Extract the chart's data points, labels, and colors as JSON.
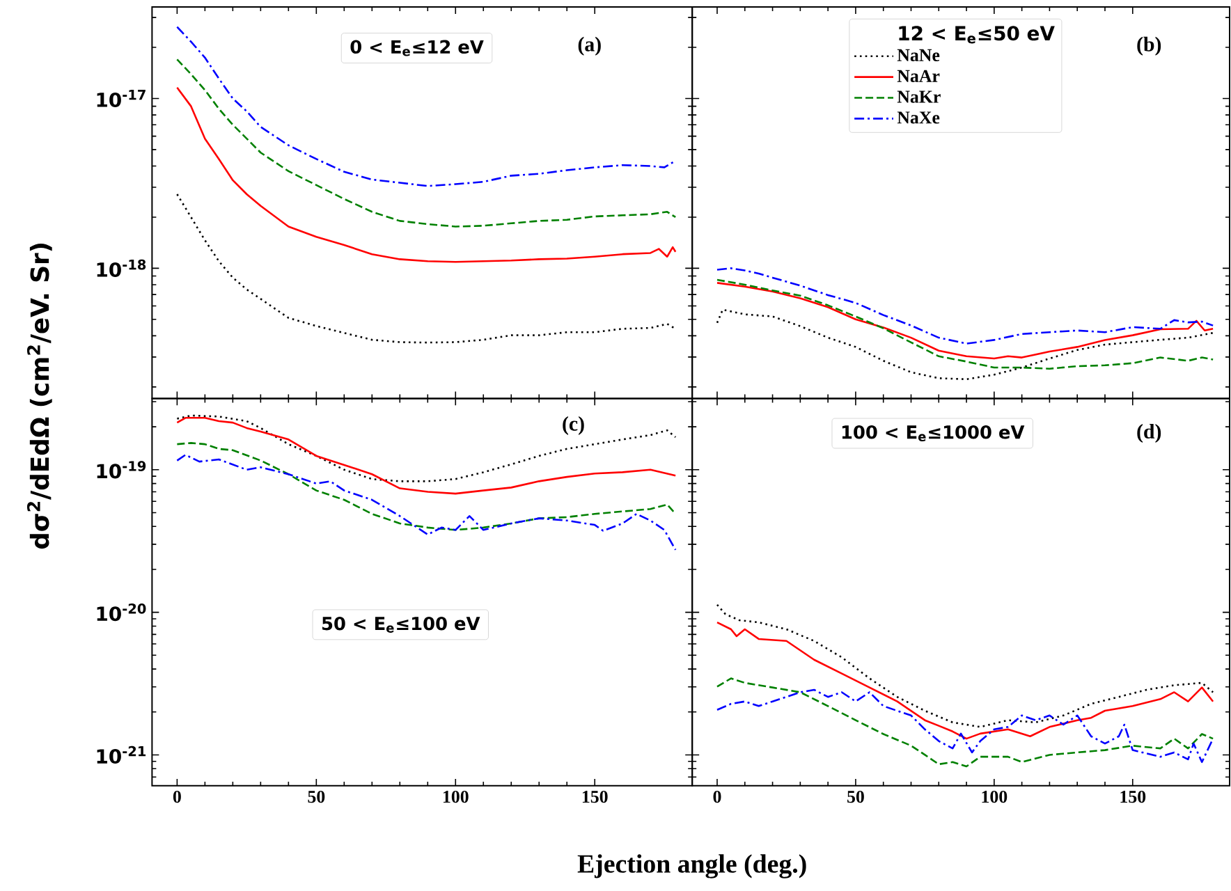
{
  "chart_data": [
    {
      "type": "line",
      "ylabel": "dσ$^{2}$/dEdΩ (cm$^{2}$/eV. Sr)",
      "log": "y",
      "xlim": [
        -9,
        185
      ],
      "xticks": [
        0,
        50,
        100,
        150
      ],
      "ylim": [
        1.71e-19,
        3.46e-17
      ],
      "yticks": [
        {
          "value": 1e-17,
          "label": "10$^{-17}$"
        },
        {
          "value": 1e-18,
          "label": "10$^{-18}$"
        }
      ],
      "tick_labels": "y",
      "legend": false,
      "annotations": [
        "0 < E$_{e}$≤12 eV",
        "(a)"
      ],
      "series": [
        {
          "color": "#000000",
          "line_style": "dotted",
          "x": [
            0,
            5,
            10,
            15,
            20,
            25,
            30,
            40,
            50,
            60,
            70,
            80,
            90,
            100,
            110,
            120,
            130,
            140,
            150,
            160,
            170,
            176,
            179
          ],
          "values": [
            2.73e-18,
            2e-18,
            1.46e-18,
            1.1e-18,
            8.8e-19,
            7.5e-19,
            6.6e-19,
            5.1e-19,
            4.57e-19,
            4.16e-19,
            3.79e-19,
            3.67e-19,
            3.65e-19,
            3.67e-19,
            3.79e-19,
            4.03e-19,
            4.03e-19,
            4.2e-19,
            4.2e-19,
            4.4e-19,
            4.45e-19,
            4.7e-19,
            4.4e-19
          ]
        },
        {
          "color": "#ff0000",
          "line_style": "solid",
          "x": [
            0,
            5,
            10,
            15,
            20,
            25,
            30,
            40,
            50,
            60,
            70,
            80,
            90,
            100,
            110,
            120,
            130,
            140,
            150,
            160,
            170,
            173,
            176,
            178,
            179
          ],
          "values": [
            1.16e-17,
            9e-18,
            5.8e-18,
            4.4e-18,
            3.3e-18,
            2.73e-18,
            2.33e-18,
            1.76e-18,
            1.53e-18,
            1.37e-18,
            1.21e-18,
            1.13e-18,
            1.1e-18,
            1.09e-18,
            1.1e-18,
            1.11e-18,
            1.13e-18,
            1.14e-18,
            1.17e-18,
            1.21e-18,
            1.23e-18,
            1.3e-18,
            1.17e-18,
            1.33e-18,
            1.25e-18
          ]
        },
        {
          "color": "#008000",
          "line_style": "dashed",
          "x": [
            0,
            5,
            10,
            15,
            20,
            25,
            30,
            40,
            50,
            60,
            70,
            80,
            90,
            100,
            110,
            120,
            130,
            140,
            150,
            160,
            170,
            176,
            179
          ],
          "values": [
            1.7e-17,
            1.39e-17,
            1.12e-17,
            8.7e-18,
            7e-18,
            5.8e-18,
            4.8e-18,
            3.73e-18,
            3.09e-18,
            2.56e-18,
            2.15e-18,
            1.9e-18,
            1.82e-18,
            1.76e-18,
            1.78e-18,
            1.84e-18,
            1.9e-18,
            1.93e-18,
            2.02e-18,
            2.05e-18,
            2.08e-18,
            2.15e-18,
            2e-18
          ]
        },
        {
          "color": "#0000ff",
          "line_style": "dashdot",
          "x": [
            0,
            5,
            10,
            15,
            20,
            25,
            30,
            40,
            50,
            60,
            70,
            80,
            90,
            100,
            110,
            120,
            130,
            140,
            150,
            160,
            170,
            175,
            179
          ],
          "values": [
            2.64e-17,
            2.16e-17,
            1.74e-17,
            1.31e-17,
            1e-17,
            8.4e-18,
            6.8e-18,
            5.3e-18,
            4.4e-18,
            3.7e-18,
            3.33e-18,
            3.19e-18,
            3.05e-18,
            3.13e-18,
            3.23e-18,
            3.51e-18,
            3.6e-18,
            3.78e-18,
            3.93e-18,
            4.05e-18,
            4e-18,
            3.93e-18,
            4.3e-18
          ]
        }
      ]
    },
    {
      "type": "line",
      "log": "y",
      "xlim": [
        -9,
        185
      ],
      "xticks": [
        0,
        50,
        100,
        150
      ],
      "ylim": [
        1.71e-19,
        3.46e-17
      ],
      "yticks": [
        {
          "value": 1e-17,
          "label": null
        },
        {
          "value": 1e-18,
          "label": null
        }
      ],
      "tick_labels": false,
      "legend": "top",
      "legend_title": "12 < E$_{e}$≤50 eV",
      "annotations": [
        "(b)"
      ],
      "series": [
        {
          "name": "NaNe",
          "color": "#000000",
          "line_style": "dotted",
          "x": [
            0,
            2,
            10,
            20,
            30,
            40,
            50,
            60,
            70,
            80,
            90,
            100,
            110,
            120,
            130,
            140,
            150,
            160,
            170,
            179
          ],
          "values": [
            4.77e-19,
            5.7e-19,
            5.35e-19,
            5.2e-19,
            4.56e-19,
            3.9e-19,
            3.44e-19,
            2.85e-19,
            2.44e-19,
            2.25e-19,
            2.22e-19,
            2.36e-19,
            2.6e-19,
            2.94e-19,
            3.3e-19,
            3.55e-19,
            3.67e-19,
            3.79e-19,
            3.9e-19,
            4.16e-19
          ]
        },
        {
          "name": "NaAr",
          "color": "#ff0000",
          "line_style": "solid",
          "x": [
            0,
            10,
            20,
            30,
            40,
            50,
            60,
            70,
            80,
            90,
            100,
            105,
            110,
            120,
            130,
            140,
            150,
            160,
            170,
            173,
            176,
            179
          ],
          "values": [
            8.2e-19,
            7.8e-19,
            7.3e-19,
            6.65e-19,
            5.9e-19,
            5e-19,
            4.48e-19,
            3.9e-19,
            3.27e-19,
            3.03e-19,
            2.94e-19,
            3.03e-19,
            2.98e-19,
            3.23e-19,
            3.44e-19,
            3.78e-19,
            4.03e-19,
            4.37e-19,
            4.4e-19,
            4.9e-19,
            4.3e-19,
            4.4e-19
          ]
        },
        {
          "name": "NaKr",
          "color": "#008000",
          "line_style": "dashed",
          "x": [
            0,
            10,
            20,
            30,
            40,
            50,
            60,
            70,
            80,
            90,
            100,
            110,
            120,
            130,
            140,
            150,
            160,
            170,
            175,
            179
          ],
          "values": [
            8.55e-19,
            8e-19,
            7.4e-19,
            6.9e-19,
            6.05e-19,
            5.2e-19,
            4.43e-19,
            3.66e-19,
            3.03e-19,
            2.82e-19,
            2.6e-19,
            2.6e-19,
            2.56e-19,
            2.65e-19,
            2.68e-19,
            2.76e-19,
            2.98e-19,
            2.85e-19,
            2.98e-19,
            2.9e-19
          ]
        },
        {
          "name": "NaXe",
          "color": "#0000ff",
          "line_style": "dashdot",
          "x": [
            0,
            5,
            10,
            15,
            20,
            30,
            40,
            50,
            60,
            70,
            80,
            90,
            100,
            110,
            120,
            130,
            140,
            150,
            160,
            165,
            170,
            175,
            179
          ],
          "values": [
            9.8e-19,
            1e-18,
            9.7e-19,
            9.3e-19,
            8.8e-19,
            7.9e-19,
            6.95e-19,
            6.25e-19,
            5.3e-19,
            4.6e-19,
            3.9e-19,
            3.6e-19,
            3.78e-19,
            4.1e-19,
            4.2e-19,
            4.3e-19,
            4.2e-19,
            4.5e-19,
            4.4e-19,
            4.95e-19,
            4.8e-19,
            4.85e-19,
            4.6e-19
          ]
        }
      ]
    },
    {
      "type": "line",
      "xlabel": "Ejection angle (deg.)",
      "log": "y",
      "xlim": [
        -9,
        185
      ],
      "xticks": [
        0,
        50,
        100,
        150
      ],
      "ylim": [
        6.07e-22,
        3.16e-19
      ],
      "yticks": [
        {
          "value": 1e-19,
          "label": "10$^{-19}$"
        },
        {
          "value": 1e-20,
          "label": "10$^{-20}$"
        },
        {
          "value": 1e-21,
          "label": "10$^{-21}$"
        }
      ],
      "legend": false,
      "annotations": [
        "50 < E$_{e}$≤100 eV",
        "(c)"
      ],
      "series": [
        {
          "color": "#000000",
          "line_style": "dotted",
          "x": [
            0,
            5,
            15,
            25,
            30,
            40,
            50,
            60,
            70,
            80,
            90,
            100,
            110,
            120,
            130,
            140,
            150,
            160,
            170,
            176,
            179
          ],
          "values": [
            2.28e-19,
            2.4e-19,
            2.36e-19,
            2.19e-19,
            1.96e-19,
            1.51e-19,
            1.25e-19,
            1e-19,
            8.6e-20,
            8.3e-20,
            8.3e-20,
            8.6e-20,
            9.6e-20,
            1.09e-19,
            1.25e-19,
            1.4e-19,
            1.51e-19,
            1.63e-19,
            1.75e-19,
            1.89e-19,
            1.69e-19
          ]
        },
        {
          "color": "#ff0000",
          "line_style": "solid",
          "x": [
            0,
            3,
            10,
            15,
            20,
            25,
            30,
            40,
            50,
            60,
            70,
            80,
            90,
            100,
            110,
            120,
            130,
            140,
            150,
            160,
            170,
            179
          ],
          "values": [
            2.14e-19,
            2.31e-19,
            2.31e-19,
            2.19e-19,
            2.14e-19,
            1.96e-19,
            1.85e-19,
            1.63e-19,
            1.25e-19,
            1.08e-19,
            9.3e-20,
            7.4e-20,
            7e-20,
            6.8e-20,
            7.15e-20,
            7.5e-20,
            8.3e-20,
            8.9e-20,
            9.4e-20,
            9.6e-20,
            1e-19,
            9.1e-20
          ]
        },
        {
          "color": "#008000",
          "line_style": "dashed",
          "x": [
            0,
            5,
            10,
            15,
            20,
            30,
            40,
            50,
            60,
            70,
            80,
            90,
            100,
            110,
            120,
            130,
            140,
            150,
            160,
            170,
            176,
            179
          ],
          "values": [
            1.51e-19,
            1.54e-19,
            1.51e-19,
            1.4e-19,
            1.37e-19,
            1.16e-19,
            9.3e-20,
            7.15e-20,
            6.15e-20,
            4.9e-20,
            4.2e-20,
            3.93e-20,
            3.78e-20,
            3.93e-20,
            4.2e-20,
            4.56e-20,
            4.65e-20,
            4.9e-20,
            5.1e-20,
            5.3e-20,
            5.7e-20,
            4.9e-20
          ]
        },
        {
          "color": "#0000ff",
          "line_style": "dashdot",
          "x": [
            0,
            3,
            8,
            15,
            25,
            30,
            40,
            50,
            55,
            60,
            70,
            80,
            90,
            95,
            100,
            105,
            110,
            120,
            130,
            140,
            150,
            153,
            160,
            165,
            170,
            175,
            179
          ],
          "values": [
            1.16e-19,
            1.27e-19,
            1.14e-19,
            1.18e-19,
            1e-19,
            1.04e-19,
            9.3e-20,
            8e-20,
            8.3e-20,
            7.15e-20,
            6.15e-20,
            4.73e-20,
            3.51e-20,
            3.93e-20,
            3.78e-20,
            4.73e-20,
            3.78e-20,
            4.2e-20,
            4.56e-20,
            4.4e-20,
            4.1e-20,
            3.73e-20,
            4.2e-20,
            4.9e-20,
            4.4e-20,
            3.78e-20,
            2.74e-20
          ]
        }
      ]
    },
    {
      "type": "line",
      "log": "y",
      "xlim": [
        -9,
        185
      ],
      "xticks": [
        0,
        50,
        100,
        150
      ],
      "ylim": [
        6.07e-22,
        3.16e-19
      ],
      "yticks": [
        {
          "value": 1e-19,
          "label": null
        },
        {
          "value": 1e-20,
          "label": null
        },
        {
          "value": 1e-21,
          "label": null
        }
      ],
      "tick_labels": "x",
      "legend": false,
      "annotations": [
        "100 < E$_{e}$≤1000 eV",
        "(d)"
      ],
      "series": [
        {
          "color": "#000000",
          "line_style": "dotted",
          "x": [
            0,
            3,
            8,
            15,
            25,
            35,
            45,
            55,
            65,
            75,
            85,
            95,
            105,
            115,
            125,
            135,
            145,
            155,
            165,
            175,
            179
          ],
          "values": [
            1.13e-20,
            9.7e-21,
            8.8e-21,
            8.5e-21,
            7.6e-21,
            6.3e-21,
            4.83e-21,
            3.44e-21,
            2.55e-21,
            2.04e-21,
            1.69e-21,
            1.57e-21,
            1.75e-21,
            1.69e-21,
            1.89e-21,
            2.28e-21,
            2.55e-21,
            2.86e-21,
            3.08e-21,
            3.2e-21,
            2.75e-21
          ]
        },
        {
          "color": "#ff0000",
          "line_style": "solid",
          "x": [
            0,
            5,
            7,
            10,
            15,
            25,
            35,
            45,
            55,
            65,
            75,
            80,
            85,
            90,
            95,
            105,
            113,
            120,
            130,
            135,
            140,
            150,
            160,
            165,
            170,
            175,
            179
          ],
          "values": [
            8.5e-21,
            7.6e-21,
            6.8e-21,
            7.6e-21,
            6.5e-21,
            6.3e-21,
            4.65e-21,
            3.72e-21,
            2.97e-21,
            2.37e-21,
            1.75e-21,
            1.6e-21,
            1.46e-21,
            1.3e-21,
            1.41e-21,
            1.51e-21,
            1.35e-21,
            1.57e-21,
            1.75e-21,
            1.82e-21,
            2.04e-21,
            2.2e-21,
            2.46e-21,
            2.75e-21,
            2.37e-21,
            2.97e-21,
            2.37e-21
          ]
        },
        {
          "color": "#008000",
          "line_style": "dashed",
          "x": [
            0,
            5,
            10,
            20,
            30,
            40,
            50,
            60,
            70,
            75,
            80,
            85,
            90,
            95,
            105,
            110,
            120,
            130,
            140,
            150,
            160,
            165,
            170,
            175,
            179
          ],
          "values": [
            3.01e-21,
            3.44e-21,
            3.2e-21,
            2.97e-21,
            2.75e-21,
            2.2e-21,
            1.75e-21,
            1.4e-21,
            1.16e-21,
            1e-21,
            8.6e-22,
            8.9e-22,
            8.3e-22,
            9.7e-22,
            9.7e-22,
            8.9e-22,
            1e-21,
            1.04e-21,
            1.08e-21,
            1.16e-21,
            1.11e-21,
            1.3e-21,
            1.11e-21,
            1.4e-21,
            1.3e-21
          ]
        },
        {
          "color": "#0000ff",
          "line_style": "dashdot",
          "x": [
            0,
            5,
            10,
            15,
            20,
            25,
            30,
            35,
            40,
            45,
            50,
            55,
            60,
            70,
            75,
            80,
            85,
            88,
            92,
            95,
            100,
            105,
            110,
            115,
            120,
            125,
            130,
            135,
            140,
            145,
            147,
            150,
            160,
            165,
            170,
            172,
            175,
            179
          ],
          "values": [
            2.07e-21,
            2.28e-21,
            2.37e-21,
            2.2e-21,
            2.37e-21,
            2.55e-21,
            2.75e-21,
            2.86e-21,
            2.55e-21,
            2.75e-21,
            2.37e-21,
            2.75e-21,
            2.2e-21,
            1.89e-21,
            1.51e-21,
            1.25e-21,
            1.11e-21,
            1.41e-21,
            1.04e-21,
            1.25e-21,
            1.51e-21,
            1.57e-21,
            1.89e-21,
            1.75e-21,
            1.89e-21,
            1.63e-21,
            1.89e-21,
            1.35e-21,
            1.2e-21,
            1.35e-21,
            1.63e-21,
            1.08e-21,
            9.7e-22,
            1.04e-21,
            9.3e-22,
            1.2e-21,
            8.9e-22,
            1.3e-21
          ]
        }
      ]
    }
  ]
}
